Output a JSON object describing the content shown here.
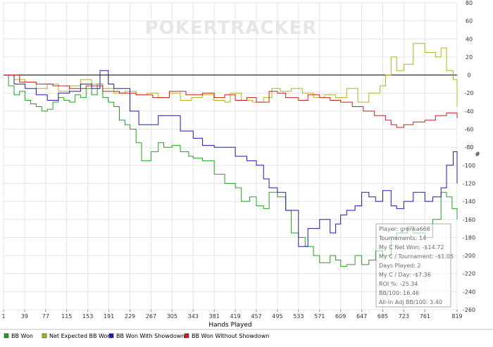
{
  "watermark": "POKERTRACKER",
  "chart_data": {
    "type": "line",
    "xlabel": "Hands Played",
    "ylabel": "#",
    "xlim": [
      1,
      819
    ],
    "ylim": [
      -260,
      80
    ],
    "x_ticks": [
      1,
      39,
      77,
      115,
      153,
      191,
      229,
      267,
      305,
      343,
      381,
      419,
      457,
      495,
      533,
      571,
      609,
      647,
      685,
      723,
      761,
      819
    ],
    "y_ticks": [
      80,
      60,
      40,
      20,
      0,
      -20,
      -40,
      -60,
      -80,
      -100,
      -120,
      -140,
      -160,
      -180,
      -200,
      -220,
      -240,
      -260
    ],
    "series": [
      {
        "name": "BB Won",
        "color": "#22a022",
        "x": [
          1,
          10,
          20,
          30,
          40,
          50,
          60,
          70,
          80,
          90,
          100,
          110,
          120,
          130,
          140,
          150,
          160,
          170,
          180,
          190,
          200,
          210,
          220,
          229,
          240,
          250,
          267,
          280,
          290,
          305,
          320,
          335,
          343,
          360,
          381,
          400,
          419,
          430,
          445,
          457,
          470,
          480,
          495,
          510,
          520,
          533,
          545,
          560,
          571,
          590,
          600,
          609,
          620,
          635,
          647,
          660,
          672,
          685,
          700,
          710,
          723,
          730,
          740,
          761,
          775,
          790,
          800,
          810,
          819
        ],
        "y": [
          0,
          -12,
          -22,
          -18,
          -28,
          -32,
          -35,
          -40,
          -38,
          -30,
          -25,
          -28,
          -30,
          -22,
          -25,
          -15,
          -22,
          -10,
          -25,
          -30,
          -35,
          -50,
          -55,
          -60,
          -75,
          -95,
          -85,
          -75,
          -80,
          -78,
          -85,
          -90,
          -92,
          -95,
          -110,
          -120,
          -125,
          -140,
          -135,
          -145,
          -148,
          -130,
          -135,
          -150,
          -175,
          -180,
          -190,
          -200,
          -208,
          -200,
          -205,
          -212,
          -210,
          -200,
          -210,
          -205,
          -195,
          -200,
          -180,
          -175,
          -175,
          -168,
          -175,
          -180,
          -160,
          -130,
          -135,
          -148,
          -160
        ]
      },
      {
        "name": "Net Expected BB Won",
        "color": "#b5b01a",
        "x": [
          1,
          20,
          40,
          60,
          80,
          100,
          120,
          140,
          160,
          180,
          200,
          220,
          240,
          260,
          280,
          300,
          320,
          340,
          360,
          380,
          400,
          410,
          430,
          450,
          470,
          485,
          500,
          520,
          540,
          560,
          580,
          600,
          620,
          640,
          660,
          680,
          690,
          700,
          710,
          723,
          740,
          761,
          780,
          790,
          800,
          812,
          819
        ],
        "y": [
          0,
          -5,
          -8,
          -15,
          -10,
          -18,
          -12,
          -5,
          -10,
          -15,
          -20,
          -18,
          -22,
          -20,
          -25,
          -20,
          -28,
          -25,
          -22,
          -28,
          -30,
          -20,
          -28,
          -30,
          -25,
          -15,
          -18,
          -15,
          -20,
          -25,
          -22,
          -25,
          -15,
          -30,
          -20,
          -12,
          0,
          20,
          5,
          12,
          35,
          25,
          20,
          30,
          5,
          -5,
          -35
        ]
      },
      {
        "name": "BB Won With Showdown",
        "color": "#1a1ab4",
        "x": [
          1,
          20,
          40,
          60,
          80,
          100,
          120,
          140,
          160,
          175,
          190,
          200,
          229,
          245,
          267,
          280,
          305,
          320,
          343,
          360,
          381,
          400,
          419,
          440,
          457,
          470,
          480,
          495,
          510,
          533,
          550,
          571,
          590,
          600,
          609,
          620,
          635,
          647,
          660,
          672,
          685,
          700,
          710,
          723,
          740,
          761,
          775,
          790,
          800,
          812,
          819
        ],
        "y": [
          0,
          -10,
          -15,
          -22,
          -28,
          -20,
          -18,
          -10,
          -15,
          5,
          -10,
          -15,
          -40,
          -55,
          -55,
          -45,
          -45,
          -62,
          -70,
          -78,
          -80,
          -80,
          -90,
          -95,
          -100,
          -115,
          -125,
          -130,
          -150,
          -190,
          -170,
          -160,
          -175,
          -165,
          -155,
          -150,
          -145,
          -130,
          -135,
          -140,
          -128,
          -145,
          -148,
          -140,
          -130,
          -140,
          -135,
          -125,
          -100,
          -85,
          -120
        ]
      },
      {
        "name": "BB Won Without Showdown",
        "color": "#c02020",
        "x": [
          1,
          30,
          60,
          90,
          120,
          150,
          180,
          210,
          240,
          270,
          300,
          330,
          360,
          381,
          400,
          419,
          440,
          457,
          480,
          495,
          510,
          533,
          550,
          571,
          590,
          609,
          630,
          650,
          670,
          690,
          700,
          710,
          723,
          740,
          761,
          780,
          800,
          819
        ],
        "y": [
          0,
          -8,
          -10,
          -12,
          -15,
          -12,
          -18,
          -20,
          -22,
          -25,
          -18,
          -22,
          -20,
          -25,
          -22,
          -28,
          -25,
          -30,
          -18,
          -20,
          -25,
          -28,
          -22,
          -25,
          -28,
          -30,
          -35,
          -40,
          -45,
          -50,
          -55,
          -58,
          -55,
          -52,
          -50,
          -45,
          -42,
          -48
        ]
      }
    ]
  },
  "stats": {
    "player": "Player: grenka666",
    "tournaments": "Tournaments: 14",
    "net_won": "My C Net Won: -$14.72",
    "per_tournament": "My C / Tournament: -$1.05",
    "days_played": "Days Played: 2",
    "per_day": "My C / Day: -$7.36",
    "roi": "ROI %: -25.34",
    "bb100": "BB/100: 16.46",
    "allin": "All-In Adj BB/100: 3.40"
  }
}
